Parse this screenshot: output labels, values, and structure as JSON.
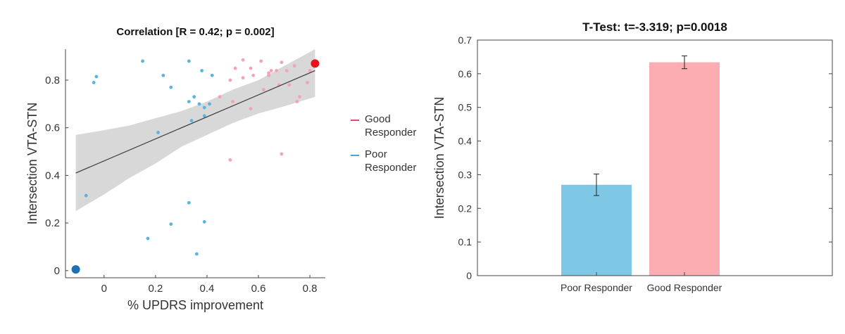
{
  "chart_data": [
    {
      "type": "scatter",
      "title": "Correlation [R = 0.42; p = 0.002]",
      "xlabel": "% UPDRS improvement",
      "ylabel": "Intersection VTA-STN",
      "xlim": [
        -0.15,
        0.86
      ],
      "ylim": [
        -0.03,
        0.93
      ],
      "xticks": [
        0,
        0.2,
        0.4,
        0.6,
        0.8
      ],
      "xtick_labels": [
        "0",
        "0.2",
        "0.4",
        "0.6",
        "0.8"
      ],
      "yticks": [
        0,
        0.2,
        0.4,
        0.6,
        0.8
      ],
      "ytick_labels": [
        "0",
        "0.2",
        "0.4",
        "0.6",
        "0.8"
      ],
      "legend_position": "right",
      "fit_line": {
        "x": [
          -0.11,
          0.82
        ],
        "y": [
          0.41,
          0.84
        ]
      },
      "confidence_band": {
        "x": [
          -0.11,
          0.0,
          0.1,
          0.2,
          0.3,
          0.4,
          0.5,
          0.6,
          0.7,
          0.82
        ],
        "upper": [
          0.57,
          0.59,
          0.61,
          0.64,
          0.67,
          0.71,
          0.76,
          0.8,
          0.86,
          0.93
        ],
        "lower": [
          0.25,
          0.32,
          0.39,
          0.45,
          0.52,
          0.57,
          0.62,
          0.66,
          0.69,
          0.73
        ]
      },
      "series": [
        {
          "name": "Good Responder",
          "legend_label": "Good Responder",
          "color": "#f4a3b4",
          "points": [
            {
              "x": 0.45,
              "y": 0.73
            },
            {
              "x": 0.49,
              "y": 0.8
            },
            {
              "x": 0.5,
              "y": 0.71
            },
            {
              "x": 0.51,
              "y": 0.85
            },
            {
              "x": 0.54,
              "y": 0.885
            },
            {
              "x": 0.54,
              "y": 0.81
            },
            {
              "x": 0.57,
              "y": 0.85
            },
            {
              "x": 0.57,
              "y": 0.68
            },
            {
              "x": 0.58,
              "y": 0.82
            },
            {
              "x": 0.61,
              "y": 0.88
            },
            {
              "x": 0.62,
              "y": 0.76
            },
            {
              "x": 0.64,
              "y": 0.83
            },
            {
              "x": 0.64,
              "y": 0.82
            },
            {
              "x": 0.65,
              "y": 0.84
            },
            {
              "x": 0.67,
              "y": 0.84
            },
            {
              "x": 0.68,
              "y": 0.78
            },
            {
              "x": 0.69,
              "y": 0.875
            },
            {
              "x": 0.71,
              "y": 0.84
            },
            {
              "x": 0.72,
              "y": 0.78
            },
            {
              "x": 0.74,
              "y": 0.86
            },
            {
              "x": 0.75,
              "y": 0.71
            },
            {
              "x": 0.76,
              "y": 0.73
            },
            {
              "x": 0.79,
              "y": 0.79
            },
            {
              "x": 0.8,
              "y": 0.84
            },
            {
              "x": 0.49,
              "y": 0.465
            },
            {
              "x": 0.69,
              "y": 0.49
            }
          ]
        },
        {
          "name": "Poor Responder",
          "legend_label": "Poor Responder",
          "color": "#5ab4e0",
          "points": [
            {
              "x": -0.04,
              "y": 0.79
            },
            {
              "x": -0.03,
              "y": 0.815
            },
            {
              "x": -0.07,
              "y": 0.315
            },
            {
              "x": 0.15,
              "y": 0.88
            },
            {
              "x": 0.17,
              "y": 0.135
            },
            {
              "x": 0.21,
              "y": 0.58
            },
            {
              "x": 0.23,
              "y": 0.82
            },
            {
              "x": 0.26,
              "y": 0.77
            },
            {
              "x": 0.26,
              "y": 0.195
            },
            {
              "x": 0.33,
              "y": 0.88
            },
            {
              "x": 0.33,
              "y": 0.71
            },
            {
              "x": 0.33,
              "y": 0.285
            },
            {
              "x": 0.34,
              "y": 0.63
            },
            {
              "x": 0.35,
              "y": 0.73
            },
            {
              "x": 0.36,
              "y": 0.07
            },
            {
              "x": 0.37,
              "y": 0.7
            },
            {
              "x": 0.38,
              "y": 0.84
            },
            {
              "x": 0.39,
              "y": 0.65
            },
            {
              "x": 0.39,
              "y": 0.205
            },
            {
              "x": 0.39,
              "y": 0.685
            },
            {
              "x": 0.41,
              "y": 0.7
            },
            {
              "x": 0.42,
              "y": 0.82
            }
          ]
        }
      ],
      "highlight_points": [
        {
          "x": 0.82,
          "y": 0.87,
          "color": "#e8141c"
        },
        {
          "x": -0.11,
          "y": 0.005,
          "color": "#1f6fb5"
        }
      ]
    },
    {
      "type": "bar",
      "title": "T-Test: t=-3.319; p=0.0018",
      "xlabel": "",
      "ylabel": "Intersection VTA-STN",
      "ylim": [
        0,
        0.7
      ],
      "yticks": [
        0,
        0.1,
        0.2,
        0.3,
        0.4,
        0.5,
        0.6,
        0.7
      ],
      "ytick_labels": [
        "0",
        "0.1",
        "0.2",
        "0.3",
        "0.4",
        "0.5",
        "0.6",
        "0.7"
      ],
      "categories": [
        "Poor Responder",
        "Good Responder"
      ],
      "values": [
        0.27,
        0.634
      ],
      "errors": [
        0.032,
        0.019
      ],
      "colors": [
        "#7ec8e6",
        "#fbadb2"
      ]
    }
  ]
}
